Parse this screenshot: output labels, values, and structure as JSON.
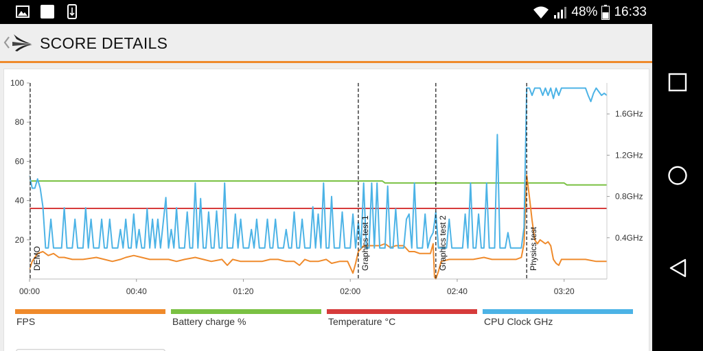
{
  "status_bar": {
    "battery_percent": "48%",
    "time": "16:33",
    "icons": [
      "image-icon",
      "square-app-icon",
      "download-icon",
      "wifi-icon",
      "signal-icon",
      "battery-icon"
    ]
  },
  "app_bar": {
    "back_icon": "chevron-left-icon",
    "logo_icon": "3dmark-logo-icon",
    "title": "SCORE DETAILS"
  },
  "colors": {
    "accent": "#ef8a2b",
    "fps": "#ef8a2b",
    "battery": "#7ac143",
    "temperature": "#d63b3b",
    "cpu_clock": "#4cb3e6"
  },
  "chart_data": {
    "type": "line",
    "x_ticks": [
      "00:00",
      "00:40",
      "01:20",
      "02:00",
      "02:40",
      "03:20"
    ],
    "x_tick_seconds": [
      0,
      40,
      80,
      120,
      160,
      200
    ],
    "x_range_seconds": [
      0,
      216
    ],
    "y_left_ticks": [
      "20",
      "40",
      "60",
      "80",
      "100"
    ],
    "y_left_range": [
      0,
      100
    ],
    "y_right_ticks": [
      "0.4GHz",
      "0.8GHz",
      "1.2GHz",
      "1.6GHz"
    ],
    "y_right_range": [
      0,
      1.9
    ],
    "phases": [
      {
        "label": "DEMO",
        "x_seconds": 0
      },
      {
        "label": "Graphics test 1",
        "x_seconds": 123
      },
      {
        "label": "Graphics test 2",
        "x_seconds": 152
      },
      {
        "label": "Physics test",
        "x_seconds": 186
      }
    ],
    "legend": [
      "FPS",
      "Battery charge %",
      "Temperature °C",
      "CPU Clock GHz"
    ],
    "series": [
      {
        "name": "FPS",
        "axis": "left",
        "points": [
          [
            0,
            5
          ],
          [
            1,
            9
          ],
          [
            3,
            13
          ],
          [
            5,
            14
          ],
          [
            7,
            12
          ],
          [
            9,
            13
          ],
          [
            11,
            11
          ],
          [
            13,
            11
          ],
          [
            16,
            10
          ],
          [
            20,
            10
          ],
          [
            25,
            11
          ],
          [
            28,
            10
          ],
          [
            31,
            9
          ],
          [
            34,
            10
          ],
          [
            36,
            11
          ],
          [
            39,
            12
          ],
          [
            42,
            11
          ],
          [
            45,
            10
          ],
          [
            48,
            10
          ],
          [
            52,
            10
          ],
          [
            55,
            9
          ],
          [
            58,
            10
          ],
          [
            62,
            11
          ],
          [
            65,
            10
          ],
          [
            68,
            9
          ],
          [
            72,
            10
          ],
          [
            74,
            7
          ],
          [
            76,
            10
          ],
          [
            79,
            9
          ],
          [
            83,
            9
          ],
          [
            87,
            9
          ],
          [
            90,
            10
          ],
          [
            93,
            10
          ],
          [
            96,
            9
          ],
          [
            99,
            9
          ],
          [
            101,
            7
          ],
          [
            103,
            10
          ],
          [
            105,
            9
          ],
          [
            108,
            9
          ],
          [
            111,
            10
          ],
          [
            113,
            8
          ],
          [
            116,
            9
          ],
          [
            119,
            9
          ],
          [
            121,
            3
          ],
          [
            122,
            8
          ],
          [
            123,
            14
          ],
          [
            125,
            17
          ],
          [
            128,
            17
          ],
          [
            131,
            17
          ],
          [
            133,
            18
          ],
          [
            135,
            16
          ],
          [
            137,
            17
          ],
          [
            140,
            17
          ],
          [
            142,
            14
          ],
          [
            144,
            14
          ],
          [
            146,
            13
          ],
          [
            148,
            13
          ],
          [
            150,
            13
          ],
          [
            151,
            18
          ],
          [
            151.5,
            1
          ],
          [
            152,
            0
          ],
          [
            153,
            4
          ],
          [
            154,
            9
          ],
          [
            157,
            10
          ],
          [
            160,
            10
          ],
          [
            163,
            10
          ],
          [
            166,
            10
          ],
          [
            170,
            11
          ],
          [
            173,
            10
          ],
          [
            176,
            10
          ],
          [
            179,
            10
          ],
          [
            182,
            10
          ],
          [
            184,
            11
          ],
          [
            185,
            18
          ],
          [
            186,
            53
          ],
          [
            187,
            42
          ],
          [
            188,
            30
          ],
          [
            189,
            20
          ],
          [
            190,
            18
          ],
          [
            191,
            20
          ],
          [
            192,
            19
          ],
          [
            193,
            18
          ],
          [
            194,
            19
          ],
          [
            195,
            17
          ],
          [
            196,
            10
          ],
          [
            197,
            8
          ],
          [
            198,
            7
          ],
          [
            199,
            10
          ],
          [
            201,
            10
          ],
          [
            204,
            10
          ],
          [
            208,
            10
          ],
          [
            212,
            9
          ],
          [
            216,
            9
          ]
        ]
      },
      {
        "name": "Battery charge %",
        "axis": "left",
        "points": [
          [
            0,
            50
          ],
          [
            132,
            50
          ],
          [
            133,
            49
          ],
          [
            200,
            49
          ],
          [
            201,
            48
          ],
          [
            216,
            48
          ]
        ]
      },
      {
        "name": "Temperature °C",
        "axis": "left",
        "points": [
          [
            0,
            36
          ],
          [
            216,
            36
          ]
        ]
      },
      {
        "name": "CPU Clock GHz",
        "axis": "right",
        "points": [
          [
            0,
            1.0
          ],
          [
            1,
            0.88
          ],
          [
            2,
            0.88
          ],
          [
            3,
            0.97
          ],
          [
            4,
            0.88
          ],
          [
            5,
            0.7
          ],
          [
            6,
            0.3
          ],
          [
            7,
            0.3
          ],
          [
            8,
            0.58
          ],
          [
            9,
            0.3
          ],
          [
            10,
            0.3
          ],
          [
            12,
            0.3
          ],
          [
            13,
            0.69
          ],
          [
            14,
            0.3
          ],
          [
            16,
            0.3
          ],
          [
            17,
            0.58
          ],
          [
            18,
            0.3
          ],
          [
            20,
            0.3
          ],
          [
            21,
            0.69
          ],
          [
            22,
            0.3
          ],
          [
            23,
            0.58
          ],
          [
            24,
            0.3
          ],
          [
            26,
            0.3
          ],
          [
            27,
            0.58
          ],
          [
            28,
            0.3
          ],
          [
            29,
            0.3
          ],
          [
            30,
            0.58
          ],
          [
            31,
            0.3
          ],
          [
            33,
            0.3
          ],
          [
            34,
            0.48
          ],
          [
            35,
            0.3
          ],
          [
            36,
            0.58
          ],
          [
            37,
            0.3
          ],
          [
            38,
            0.3
          ],
          [
            39,
            0.63
          ],
          [
            40,
            0.3
          ],
          [
            41,
            0.48
          ],
          [
            42,
            0.3
          ],
          [
            43,
            0.3
          ],
          [
            44,
            0.68
          ],
          [
            45,
            0.3
          ],
          [
            46,
            0.58
          ],
          [
            47,
            0.3
          ],
          [
            48,
            0.58
          ],
          [
            49,
            0.3
          ],
          [
            51,
            0.79
          ],
          [
            52,
            0.3
          ],
          [
            53,
            0.48
          ],
          [
            54,
            0.3
          ],
          [
            55,
            0.69
          ],
          [
            56,
            0.3
          ],
          [
            58,
            0.3
          ],
          [
            59,
            0.65
          ],
          [
            60,
            0.3
          ],
          [
            61,
            0.3
          ],
          [
            62,
            0.93
          ],
          [
            63,
            0.3
          ],
          [
            64,
            0.78
          ],
          [
            65,
            0.3
          ],
          [
            66,
            0.3
          ],
          [
            67,
            0.65
          ],
          [
            68,
            0.3
          ],
          [
            69,
            0.3
          ],
          [
            70,
            0.66
          ],
          [
            71,
            0.3
          ],
          [
            72,
            0.3
          ],
          [
            73,
            0.93
          ],
          [
            74,
            0.3
          ],
          [
            76,
            0.3
          ],
          [
            77,
            0.63
          ],
          [
            78,
            0.3
          ],
          [
            79,
            0.58
          ],
          [
            80,
            0.3
          ],
          [
            82,
            0.3
          ],
          [
            83,
            0.48
          ],
          [
            84,
            0.3
          ],
          [
            85,
            0.58
          ],
          [
            86,
            0.3
          ],
          [
            88,
            0.3
          ],
          [
            89,
            0.58
          ],
          [
            90,
            0.3
          ],
          [
            91,
            0.3
          ],
          [
            92,
            0.58
          ],
          [
            93,
            0.3
          ],
          [
            95,
            0.3
          ],
          [
            96,
            0.48
          ],
          [
            97,
            0.3
          ],
          [
            98,
            0.3
          ],
          [
            99,
            0.65
          ],
          [
            100,
            0.3
          ],
          [
            101,
            0.3
          ],
          [
            102,
            0.58
          ],
          [
            103,
            0.3
          ],
          [
            105,
            0.3
          ],
          [
            106,
            0.7
          ],
          [
            107,
            0.3
          ],
          [
            108,
            0.63
          ],
          [
            109,
            0.3
          ],
          [
            110,
            0.93
          ],
          [
            111,
            0.3
          ],
          [
            112,
            0.3
          ],
          [
            113,
            0.8
          ],
          [
            114,
            0.3
          ],
          [
            116,
            0.3
          ],
          [
            117,
            0.65
          ],
          [
            118,
            0.3
          ],
          [
            120,
            0.3
          ],
          [
            121,
            0.63
          ],
          [
            122,
            0.3
          ],
          [
            123,
            0.55
          ],
          [
            124,
            0.3
          ],
          [
            125,
            0.93
          ],
          [
            126,
            0.3
          ],
          [
            127,
            0.3
          ],
          [
            128,
            0.93
          ],
          [
            129,
            0.3
          ],
          [
            130,
            0.93
          ],
          [
            131,
            0.3
          ],
          [
            133,
            0.3
          ],
          [
            134,
            0.9
          ],
          [
            135,
            0.3
          ],
          [
            136,
            0.3
          ],
          [
            137,
            0.68
          ],
          [
            138,
            0.3
          ],
          [
            140,
            0.3
          ],
          [
            141,
            0.58
          ],
          [
            142,
            0.63
          ],
          [
            143,
            0.3
          ],
          [
            144,
            0.93
          ],
          [
            145,
            0.3
          ],
          [
            147,
            0.3
          ],
          [
            148,
            0.63
          ],
          [
            149,
            0.3
          ],
          [
            150,
            0.4
          ],
          [
            151,
            0.45
          ],
          [
            152,
            0.65
          ],
          [
            153,
            0.3
          ],
          [
            156,
            0.3
          ],
          [
            157,
            0.58
          ],
          [
            158,
            0.3
          ],
          [
            162,
            0.3
          ],
          [
            163,
            0.63
          ],
          [
            164,
            0.3
          ],
          [
            165,
            0.93
          ],
          [
            166,
            0.3
          ],
          [
            167,
            0.3
          ],
          [
            168,
            0.63
          ],
          [
            169,
            0.3
          ],
          [
            170,
            0.3
          ],
          [
            171,
            0.93
          ],
          [
            172,
            0.3
          ],
          [
            174,
            0.3
          ],
          [
            175,
            1.4
          ],
          [
            176,
            0.3
          ],
          [
            178,
            0.3
          ],
          [
            179,
            0.45
          ],
          [
            180,
            0.3
          ],
          [
            184,
            0.3
          ],
          [
            185,
            0.5
          ],
          [
            186,
            1.85
          ],
          [
            187,
            1.85
          ],
          [
            188,
            1.78
          ],
          [
            189,
            1.85
          ],
          [
            191,
            1.85
          ],
          [
            192,
            1.78
          ],
          [
            193,
            1.85
          ],
          [
            194,
            1.78
          ],
          [
            195,
            1.85
          ],
          [
            196,
            1.75
          ],
          [
            197,
            1.85
          ],
          [
            198,
            1.78
          ],
          [
            199,
            1.85
          ],
          [
            200,
            1.85
          ],
          [
            205,
            1.85
          ],
          [
            208,
            1.85
          ],
          [
            209,
            1.78
          ],
          [
            210,
            1.72
          ],
          [
            211,
            1.8
          ],
          [
            212,
            1.85
          ],
          [
            214,
            1.78
          ],
          [
            215,
            1.8
          ],
          [
            216,
            1.78
          ]
        ]
      }
    ]
  },
  "bottom_button": {
    "label": ""
  },
  "nav_bar": {
    "icons": [
      "recents-square-icon",
      "home-circle-icon",
      "back-triangle-icon"
    ]
  }
}
